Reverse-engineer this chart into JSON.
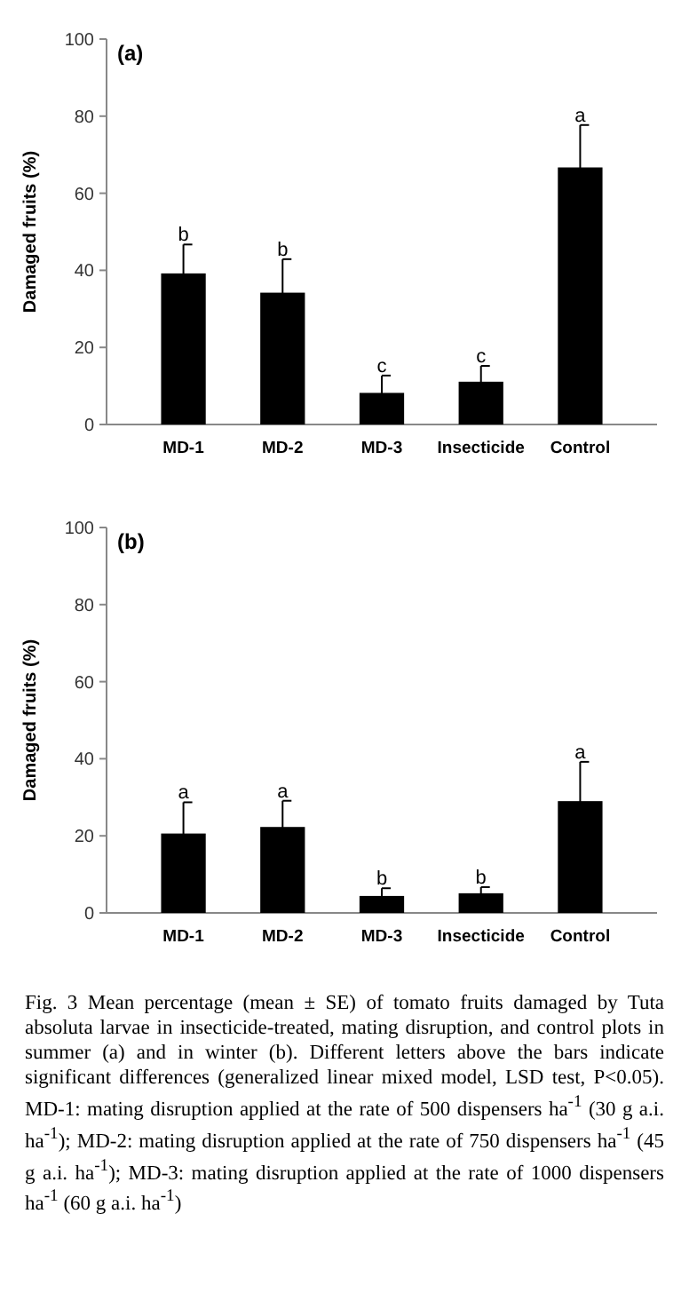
{
  "chart_data": [
    {
      "type": "bar",
      "title": "(a)",
      "ylabel": "Damaged fruits (%)",
      "categories": [
        "MD-1",
        "MD-2",
        "MD-3",
        "Insecticide",
        "Control"
      ],
      "values": [
        39.2,
        34.2,
        8.2,
        11.1,
        66.7
      ],
      "errors": [
        7.5,
        8.7,
        4.5,
        4.1,
        11.0
      ],
      "color": "#000000",
      "ylim": [
        0,
        100
      ],
      "yticks": [
        0,
        20,
        40,
        60,
        80,
        100
      ],
      "annotations": [
        {
          "text": "b",
          "x": "MD-1",
          "y": 46.7
        },
        {
          "text": "b",
          "x": "MD-2",
          "y": 42.9
        },
        {
          "text": "c",
          "x": "MD-3",
          "y": 12.7
        },
        {
          "text": "c",
          "x": "Insecticide",
          "y": 15.2
        },
        {
          "text": "a",
          "x": "Control",
          "y": 77.7
        }
      ]
    },
    {
      "type": "bar",
      "title": "(b)",
      "ylabel": "Damaged fruits (%)",
      "categories": [
        "MD-1",
        "MD-2",
        "MD-3",
        "Insecticide",
        "Control"
      ],
      "values": [
        20.6,
        22.3,
        4.4,
        5.1,
        29.0
      ],
      "errors": [
        8.1,
        6.8,
        2.0,
        1.6,
        10.2
      ],
      "color": "#000000",
      "ylim": [
        0,
        100
      ],
      "yticks": [
        0,
        20,
        40,
        60,
        80,
        100
      ],
      "annotations": [
        {
          "text": "a",
          "x": "MD-1",
          "y": 28.7
        },
        {
          "text": "a",
          "x": "MD-2",
          "y": 29.1
        },
        {
          "text": "b",
          "x": "MD-3",
          "y": 6.4
        },
        {
          "text": "b",
          "x": "Insecticide",
          "y": 6.7
        },
        {
          "text": "a",
          "x": "Control",
          "y": 39.2
        },
        "Fig. 3 Mean percentage (mean ± SE) of tomato fruits damaged by Tuta absoluta larvae in insecticide-treated, mating disruption, and control plots in summer (a) and in winter (b). Different letters above the bars indicate significant differences (generalized linear mixed model, LSD test, P<0.05). MD-1: mating disruption applied at the rate of 500 dispensers ha$^{-1}$ (30 g a.i. ha$^{-1}$); MD-2: mating disruption applied at the rate of 750 dispensers ha$^{-1}$ (45 g a.i. ha$^{-1}$); MD-3: mating disruption applied at the rate of 1000 dispensers ha$^{-1}$ (60 g a.i. ha$^{-1}$)"
      ]
    }
  ]
}
